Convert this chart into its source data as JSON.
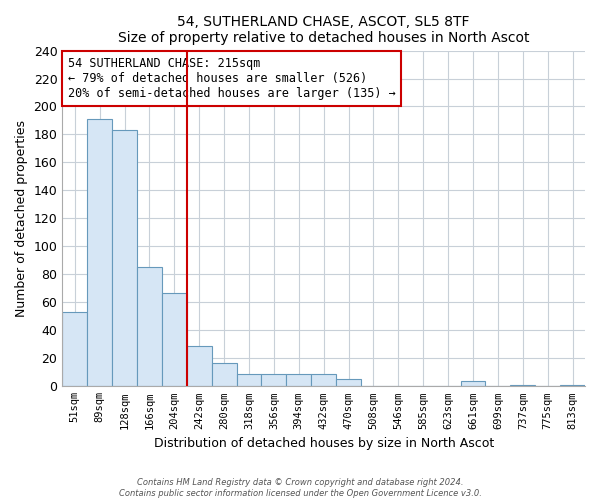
{
  "title": "54, SUTHERLAND CHASE, ASCOT, SL5 8TF",
  "subtitle": "Size of property relative to detached houses in North Ascot",
  "xlabel": "Distribution of detached houses by size in North Ascot",
  "ylabel": "Number of detached properties",
  "footer_line1": "Contains HM Land Registry data © Crown copyright and database right 2024.",
  "footer_line2": "Contains public sector information licensed under the Open Government Licence v3.0.",
  "bar_labels": [
    "51sqm",
    "89sqm",
    "128sqm",
    "166sqm",
    "204sqm",
    "242sqm",
    "280sqm",
    "318sqm",
    "356sqm",
    "394sqm",
    "432sqm",
    "470sqm",
    "508sqm",
    "546sqm",
    "585sqm",
    "623sqm",
    "661sqm",
    "699sqm",
    "737sqm",
    "775sqm",
    "813sqm"
  ],
  "bar_values": [
    53,
    191,
    183,
    85,
    67,
    29,
    17,
    9,
    9,
    9,
    9,
    5,
    0,
    0,
    0,
    0,
    4,
    0,
    1,
    0,
    1
  ],
  "bar_color": "#d6e6f5",
  "bar_edge_color": "#6699bb",
  "vline_color": "#cc0000",
  "annotation_text": "54 SUTHERLAND CHASE: 215sqm\n← 79% of detached houses are smaller (526)\n20% of semi-detached houses are larger (135) →",
  "annotation_box_edgecolor": "#cc0000",
  "ylim": [
    0,
    240
  ],
  "yticks": [
    0,
    20,
    40,
    60,
    80,
    100,
    120,
    140,
    160,
    180,
    200,
    220,
    240
  ],
  "background_color": "#ffffff",
  "grid_color": "#c8d0d8",
  "title_fontsize": 11,
  "subtitle_fontsize": 9
}
